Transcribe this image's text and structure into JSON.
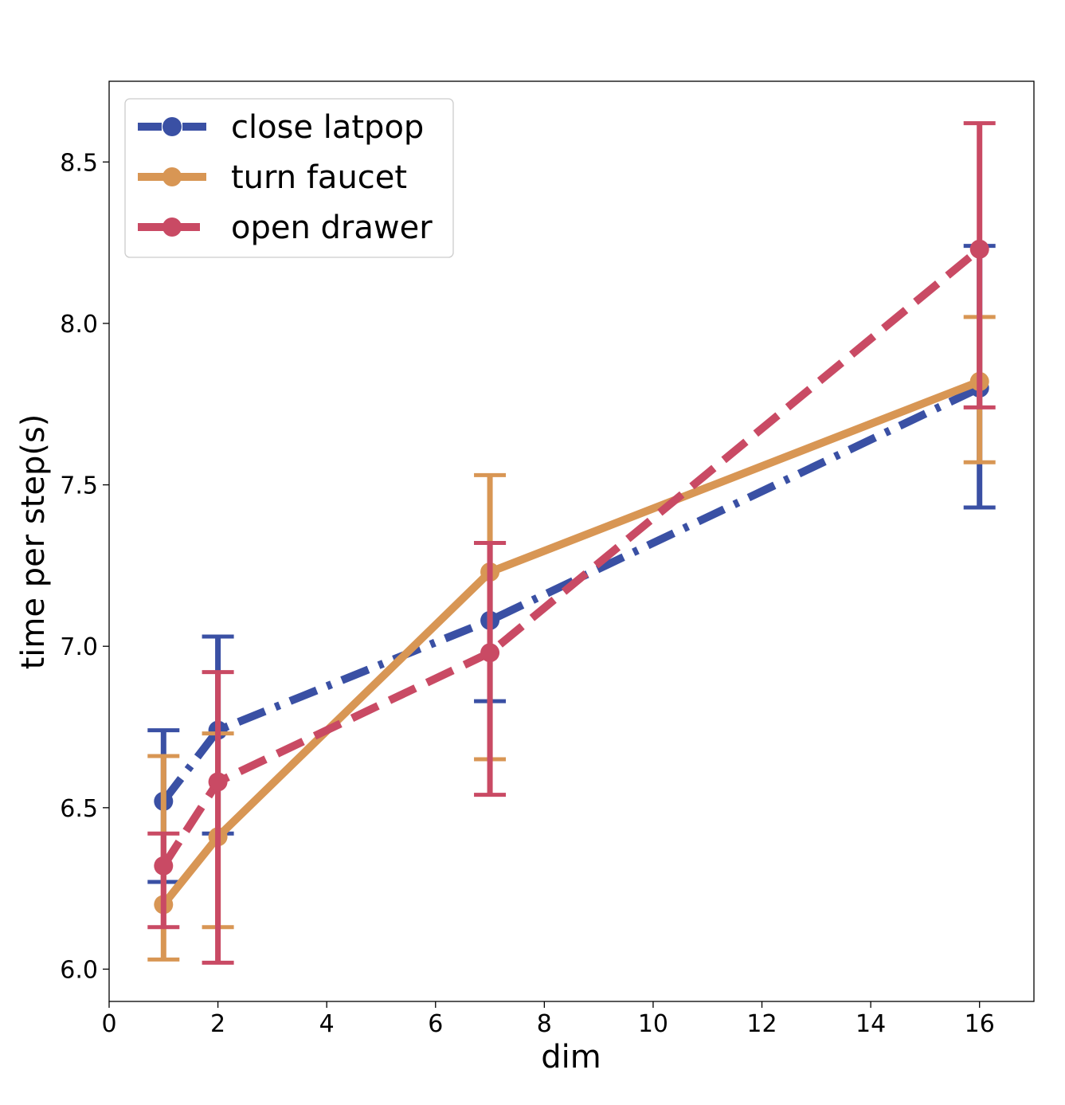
{
  "chart_data": {
    "type": "line",
    "xlabel": "dim",
    "ylabel": "time per step(s)",
    "xlim": [
      0,
      17
    ],
    "ylim": [
      5.9,
      8.75
    ],
    "xticks": [
      "0",
      "2",
      "4",
      "6",
      "8",
      "10",
      "12",
      "14",
      "16"
    ],
    "yticks": [
      "6.0",
      "6.5",
      "7.0",
      "7.5",
      "8.0",
      "8.5"
    ],
    "grid": false,
    "legend": "top-left",
    "x": [
      1,
      2,
      7,
      16
    ],
    "series": [
      {
        "name": "close latpop",
        "color": "#3a50a4",
        "linestyle": "dashdot",
        "values": [
          6.52,
          6.74,
          7.08,
          7.8
        ],
        "err_low": [
          6.27,
          6.42,
          6.83,
          7.43
        ],
        "err_high": [
          6.74,
          7.03,
          7.32,
          8.24
        ]
      },
      {
        "name": "turn faucet",
        "color": "#d89654",
        "linestyle": "solid",
        "values": [
          6.2,
          6.41,
          7.23,
          7.82
        ],
        "err_low": [
          6.03,
          6.13,
          6.65,
          7.57
        ],
        "err_high": [
          6.66,
          6.73,
          7.53,
          8.02
        ]
      },
      {
        "name": "open drawer",
        "color": "#c94a64",
        "linestyle": "dashed",
        "values": [
          6.32,
          6.58,
          6.98,
          8.23
        ],
        "err_low": [
          6.13,
          6.02,
          6.54,
          7.74
        ],
        "err_high": [
          6.42,
          6.92,
          7.32,
          8.62
        ]
      }
    ]
  }
}
